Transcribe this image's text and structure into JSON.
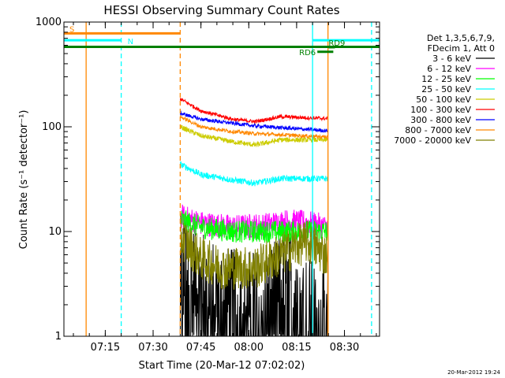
{
  "chart_data": {
    "type": "line",
    "title": "HESSI Observing Summary Count Rates",
    "xlabel": "Start Time (20-Mar-12 07:02:02)",
    "ylabel": "Count Rate (s⁻¹ detector⁻¹)",
    "y_scale": "log",
    "ylim": [
      1,
      1000
    ],
    "xlim": [
      "07:02:02",
      "08:41:00"
    ],
    "x_ticks": [
      "07:15",
      "07:30",
      "07:45",
      "08:00",
      "08:15",
      "08:30"
    ],
    "y_ticks": [
      "1",
      "10",
      "100",
      "1000"
    ],
    "legend_position": "right",
    "legend_header": [
      "Det 1,3,5,6,7,9,",
      "FDecim 1, Att 0"
    ],
    "data_start": "07:38:30",
    "data_end": "08:24:50",
    "series": [
      {
        "name": "3 - 6 keV",
        "color": "#000000",
        "x": [
          "07:38:30",
          "07:45",
          "07:55",
          "08:05",
          "08:15",
          "08:20"
        ],
        "values": [
          4.5,
          3.0,
          2.0,
          2.0,
          3.5,
          1.5
        ]
      },
      {
        "name": "6 - 12 keV",
        "color": "#ff00ff",
        "x": [
          "07:38:30",
          "07:45",
          "07:55",
          "08:05",
          "08:12",
          "08:20",
          "08:24"
        ],
        "values": [
          14,
          12,
          11,
          11.5,
          12.5,
          12,
          11
        ]
      },
      {
        "name": "12 - 25 keV",
        "color": "#00ff00",
        "x": [
          "07:38:30",
          "07:45",
          "07:55",
          "08:05",
          "08:15",
          "08:24"
        ],
        "values": [
          13,
          11,
          10,
          10,
          10,
          10
        ]
      },
      {
        "name": "25 - 50 keV",
        "color": "#00ffff",
        "x": [
          "07:38:30",
          "07:45",
          "07:55",
          "08:02",
          "08:10",
          "08:24"
        ],
        "values": [
          44,
          35,
          31,
          29,
          32,
          32
        ]
      },
      {
        "name": "50 - 100 keV",
        "color": "#cccc00",
        "x": [
          "07:38:30",
          "07:45",
          "07:55",
          "08:02",
          "08:10",
          "08:24"
        ],
        "values": [
          100,
          82,
          72,
          67,
          75,
          75
        ]
      },
      {
        "name": "100 - 300 keV",
        "color": "#ff0000",
        "x": [
          "07:38:30",
          "07:45",
          "07:55",
          "08:02",
          "08:10",
          "08:24"
        ],
        "values": [
          185,
          142,
          118,
          112,
          125,
          120
        ]
      },
      {
        "name": "300 - 800 keV",
        "color": "#0000ff",
        "x": [
          "07:38:30",
          "07:45",
          "07:55",
          "08:02",
          "08:10",
          "08:24"
        ],
        "values": [
          135,
          118,
          108,
          102,
          98,
          92
        ]
      },
      {
        "name": "800 - 7000 keV",
        "color": "#ff8800",
        "x": [
          "07:38:30",
          "07:45",
          "07:55",
          "08:02",
          "08:10",
          "08:24"
        ],
        "values": [
          125,
          100,
          90,
          86,
          84,
          80
        ]
      },
      {
        "name": "7000 - 20000 keV",
        "color": "#808000",
        "x": [
          "07:38:30",
          "07:45",
          "07:52",
          "08:02",
          "08:10",
          "08:18",
          "08:24"
        ],
        "values": [
          9,
          5.5,
          4.5,
          4.5,
          6,
          8,
          6
        ]
      }
    ],
    "annotations": {
      "bars": [
        {
          "label": "S",
          "color": "#ff8800",
          "start": "07:02:02",
          "end": "07:38:30",
          "level": 780
        },
        {
          "label": "N",
          "color": "#00ffff",
          "start": "07:02:02",
          "end": "07:20:00",
          "level": 670
        },
        {
          "label": "",
          "color": "#00ffff",
          "start": "08:20:00",
          "end": "08:41:00",
          "level": 670
        },
        {
          "label": "",
          "color": "#008000",
          "start": "07:02:02",
          "end": "08:41:00",
          "level": 580
        },
        {
          "label": "RD6",
          "color": "#008000",
          "start": "08:21:30",
          "end": "08:26:30",
          "level": 520
        },
        {
          "label": "RD9",
          "color": "#008000",
          "start": "08:25:00",
          "end": "08:27:00",
          "level": 575
        }
      ],
      "vlines": [
        {
          "t": "07:09:00",
          "color": "#ff8800",
          "style": "solid"
        },
        {
          "t": "07:20:00",
          "color": "#00ffff",
          "style": "dashed"
        },
        {
          "t": "07:38:30",
          "color": "#ff8800",
          "style": "dashed"
        },
        {
          "t": "08:20:00",
          "color": "#00ffff",
          "style": "solid"
        },
        {
          "t": "08:24:50",
          "color": "#ff8800",
          "style": "solid"
        },
        {
          "t": "08:38:30",
          "color": "#00ffff",
          "style": "dashed"
        }
      ]
    },
    "footer": "20-Mar-2012 19:24"
  }
}
